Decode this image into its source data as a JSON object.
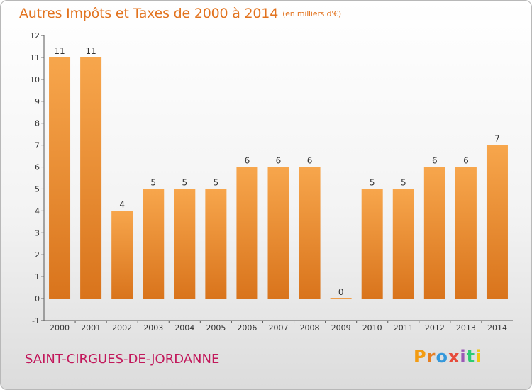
{
  "header": {
    "title": "Autres Impôts et Taxes de 2000 à 2014",
    "unit": "(en milliers d'€)"
  },
  "footer": {
    "commune": "SAINT-CIRGUES-DE-JORDANNE",
    "logo_text": "Proxiti"
  },
  "colors": {
    "title": "#e2731f",
    "commune": "#c2185b",
    "bar_light": "#f7a64c",
    "bar_dark": "#d9741c",
    "logo": [
      "#f39c12",
      "#e67e22",
      "#3498db",
      "#e74c3c",
      "#9b59b6",
      "#2ecc71",
      "#f1c40f"
    ]
  },
  "chart_data": {
    "type": "bar",
    "categories": [
      "2000",
      "2001",
      "2002",
      "2003",
      "2004",
      "2005",
      "2006",
      "2007",
      "2008",
      "2009",
      "2010",
      "2011",
      "2012",
      "2013",
      "2014"
    ],
    "values": [
      11,
      11,
      4,
      5,
      5,
      5,
      6,
      6,
      6,
      0,
      5,
      5,
      6,
      6,
      7
    ],
    "data_labels": [
      "11",
      "11",
      "4",
      "5",
      "5",
      "5",
      "6",
      "6",
      "6",
      "0",
      "5",
      "5",
      "6",
      "6",
      "7"
    ],
    "y_ticks": [
      -1,
      0,
      1,
      2,
      3,
      4,
      5,
      6,
      7,
      8,
      9,
      10,
      11,
      12
    ],
    "y_tick_labels": [
      "-1",
      "0",
      "1",
      "2",
      "3",
      "4",
      "5",
      "6",
      "7",
      "8",
      "9",
      "10",
      "11",
      "12"
    ],
    "ylim": [
      -1,
      12
    ],
    "xlabel": "",
    "ylabel": "",
    "grid": false,
    "legend": "none"
  }
}
